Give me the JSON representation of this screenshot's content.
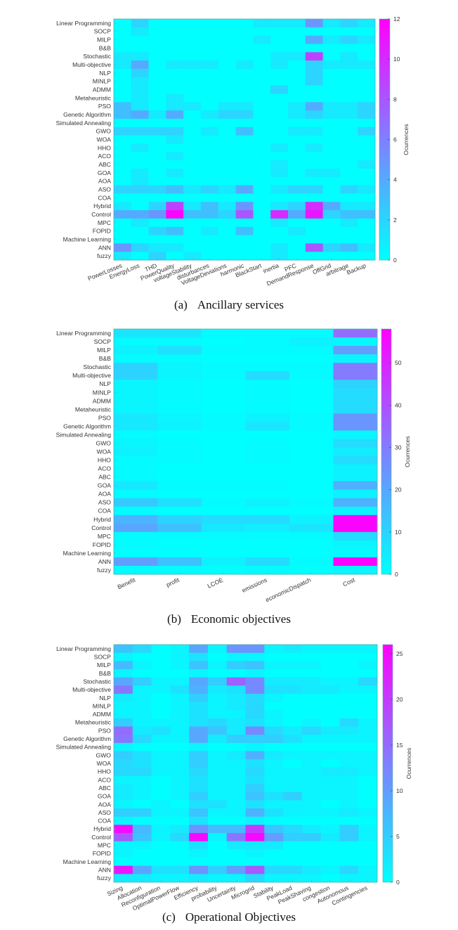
{
  "chart_data": [
    {
      "id": "a",
      "type": "heatmap",
      "caption_label": "(a)",
      "caption_text": "Ancillary services",
      "colorbar_label": "Ocurrences",
      "clim": [
        0,
        12
      ],
      "colorbar_ticks": [
        0,
        2,
        4,
        6,
        8,
        10,
        12
      ],
      "colormap": [
        "#00ffff",
        "#ff00ff"
      ],
      "rows": [
        "Linear Programming",
        "SOCP",
        "MILP",
        "B&B",
        "Stochastic",
        "Multi-objective",
        "NLP",
        "MINLP",
        "ADMM",
        "Metaheuristic",
        "PSO",
        "Genetic Algorithm",
        "Simulated Annealing",
        "GWO",
        "WOA",
        "HHO",
        "ACO",
        "ABC",
        "GOA",
        "AOA",
        "ASO",
        "COA",
        "Hybrid",
        "Control",
        "MPC",
        "FOPID",
        "Machine Learning",
        "ANN",
        "fuzzy"
      ],
      "columns": [
        "PowerLosses",
        "EnergyLoss",
        "THD",
        "PowerQuality",
        "voltageStability",
        "disturbances",
        "VoltageDeviations",
        "harmonic",
        "BlackStart",
        "inertia",
        "PFC",
        "DemandResponse",
        "OffGrid",
        "arbitrage",
        "Backup"
      ],
      "values": [
        [
          0,
          2,
          0,
          0,
          0,
          0,
          0,
          0,
          1,
          1,
          1,
          5,
          1,
          2,
          1
        ],
        [
          0,
          1,
          0,
          0,
          0,
          0,
          0,
          0,
          0,
          0,
          0,
          0,
          0,
          0,
          0
        ],
        [
          0,
          0,
          0,
          0,
          0,
          0,
          0,
          0,
          1,
          0,
          0,
          4,
          1,
          2,
          1
        ],
        [
          0,
          0,
          0,
          0,
          0,
          0,
          0,
          0,
          0,
          0,
          0,
          0,
          0,
          0,
          0
        ],
        [
          1,
          1,
          0,
          0,
          0,
          0,
          0,
          0,
          0,
          1,
          1,
          9,
          0,
          1,
          0
        ],
        [
          1,
          4,
          0,
          1,
          1,
          1,
          0,
          1,
          0,
          1,
          0,
          2,
          1,
          1,
          1
        ],
        [
          0,
          2,
          0,
          0,
          0,
          0,
          0,
          0,
          0,
          0,
          0,
          2,
          0,
          0,
          0
        ],
        [
          0,
          1,
          0,
          0,
          0,
          0,
          0,
          0,
          0,
          0,
          0,
          2,
          0,
          0,
          0
        ],
        [
          0,
          1,
          0,
          0,
          0,
          0,
          0,
          0,
          0,
          2,
          0,
          0,
          0,
          0,
          0
        ],
        [
          0,
          1,
          0,
          1,
          0,
          0,
          0,
          0,
          0,
          0,
          0,
          0,
          0,
          0,
          0
        ],
        [
          3,
          1,
          0,
          1,
          1,
          0,
          1,
          1,
          0,
          0,
          1,
          4,
          1,
          1,
          2
        ],
        [
          3,
          4,
          1,
          4,
          0,
          1,
          2,
          2,
          0,
          0,
          1,
          2,
          1,
          1,
          2
        ],
        [
          0,
          0,
          0,
          0,
          0,
          0,
          0,
          0,
          0,
          0,
          0,
          0,
          0,
          0,
          0
        ],
        [
          2,
          2,
          2,
          2,
          0,
          1,
          0,
          3,
          0,
          0,
          1,
          1,
          0,
          0,
          2
        ],
        [
          0,
          0,
          0,
          1,
          0,
          0,
          0,
          0,
          0,
          0,
          0,
          0,
          0,
          0,
          0
        ],
        [
          0,
          1,
          0,
          0,
          0,
          0,
          0,
          0,
          0,
          1,
          0,
          1,
          0,
          0,
          0
        ],
        [
          0,
          0,
          0,
          1,
          0,
          0,
          0,
          0,
          0,
          0,
          0,
          0,
          0,
          0,
          0
        ],
        [
          0,
          0,
          0,
          0,
          0,
          0,
          0,
          0,
          0,
          1,
          0,
          0,
          0,
          0,
          1
        ],
        [
          0,
          1,
          0,
          1,
          0,
          0,
          0,
          0,
          0,
          1,
          0,
          1,
          1,
          0,
          0
        ],
        [
          0,
          1,
          0,
          0,
          0,
          0,
          0,
          0,
          0,
          0,
          0,
          0,
          0,
          0,
          0
        ],
        [
          2,
          2,
          2,
          3,
          1,
          2,
          1,
          4,
          0,
          1,
          2,
          2,
          0,
          2,
          1
        ],
        [
          0,
          0,
          0,
          0,
          0,
          0,
          0,
          0,
          0,
          0,
          0,
          0,
          0,
          0,
          0
        ],
        [
          1,
          0,
          2,
          9,
          1,
          3,
          1,
          5,
          0,
          1,
          2,
          10,
          4,
          1,
          1
        ],
        [
          4,
          4,
          5,
          12,
          3,
          3,
          2,
          8,
          0,
          10,
          4,
          11,
          2,
          3,
          3
        ],
        [
          0,
          1,
          0,
          0,
          0,
          0,
          0,
          0,
          0,
          1,
          0,
          0,
          0,
          1,
          0
        ],
        [
          0,
          0,
          2,
          3,
          0,
          1,
          0,
          3,
          0,
          0,
          1,
          0,
          0,
          0,
          0
        ],
        [
          0,
          0,
          0,
          0,
          0,
          0,
          0,
          0,
          0,
          0,
          0,
          0,
          0,
          0,
          0
        ],
        [
          5,
          2,
          1,
          1,
          0,
          0,
          0,
          0,
          0,
          1,
          0,
          8,
          2,
          3,
          1
        ],
        [
          1,
          0,
          2,
          0,
          1,
          0,
          0,
          0,
          0,
          1,
          0,
          0,
          0,
          0,
          0
        ]
      ]
    },
    {
      "id": "b",
      "type": "heatmap",
      "caption_label": "(b)",
      "caption_text": "Economic objectives",
      "colorbar_label": "Ocurrences",
      "clim": [
        0,
        58
      ],
      "colorbar_ticks": [
        0,
        10,
        20,
        30,
        40,
        50
      ],
      "colormap": [
        "#00ffff",
        "#ff00ff"
      ],
      "rows": [
        "Linear Programming",
        "SOCP",
        "MILP",
        "B&B",
        "Stochastic",
        "Multi-objective",
        "NLP",
        "MINLP",
        "ADMM",
        "Metaheuristic",
        "PSO",
        "Genetic Algorithm",
        "Simulated Annealing",
        "GWO",
        "WOA",
        "HHO",
        "ACO",
        "ABC",
        "GOA",
        "AOA",
        "ASO",
        "COA",
        "Hybrid",
        "Control",
        "MPC",
        "FOPID",
        "Machine Learning",
        "ANN",
        "fuzzy"
      ],
      "columns": [
        "Benefit",
        "profit",
        "LCOE",
        "emissions",
        "economicDispatch",
        "Cost"
      ],
      "values": [
        [
          6,
          6,
          1,
          1,
          1,
          33
        ],
        [
          1,
          1,
          0,
          1,
          3,
          2
        ],
        [
          3,
          7,
          1,
          1,
          1,
          22
        ],
        [
          1,
          1,
          0,
          0,
          0,
          2
        ],
        [
          10,
          2,
          1,
          1,
          1,
          30
        ],
        [
          10,
          2,
          1,
          8,
          1,
          30
        ],
        [
          2,
          1,
          0,
          1,
          0,
          10
        ],
        [
          2,
          1,
          0,
          1,
          0,
          8
        ],
        [
          2,
          1,
          0,
          1,
          0,
          8
        ],
        [
          2,
          1,
          0,
          1,
          0,
          8
        ],
        [
          5,
          2,
          1,
          3,
          1,
          24
        ],
        [
          5,
          3,
          1,
          6,
          1,
          24
        ],
        [
          1,
          0,
          0,
          0,
          0,
          2
        ],
        [
          2,
          1,
          0,
          1,
          0,
          8
        ],
        [
          3,
          1,
          0,
          1,
          0,
          4
        ],
        [
          1,
          1,
          0,
          1,
          0,
          8
        ],
        [
          1,
          0,
          0,
          0,
          0,
          3
        ],
        [
          1,
          0,
          0,
          0,
          0,
          3
        ],
        [
          5,
          1,
          1,
          1,
          0,
          18
        ],
        [
          1,
          0,
          0,
          0,
          0,
          3
        ],
        [
          12,
          7,
          1,
          3,
          1,
          18
        ],
        [
          1,
          0,
          0,
          0,
          0,
          3
        ],
        [
          17,
          10,
          8,
          8,
          3,
          57
        ],
        [
          20,
          14,
          5,
          4,
          6,
          57
        ],
        [
          1,
          1,
          1,
          1,
          1,
          8
        ],
        [
          1,
          0,
          0,
          0,
          0,
          2
        ],
        [
          0,
          0,
          0,
          0,
          0,
          1
        ],
        [
          22,
          14,
          3,
          8,
          1,
          57
        ],
        [
          1,
          1,
          0,
          1,
          0,
          2
        ]
      ]
    },
    {
      "id": "c",
      "type": "heatmap",
      "caption_label": "(c)",
      "caption_text": "Operational Objectives",
      "colorbar_label": "Ocurrences",
      "clim": [
        0,
        26
      ],
      "colorbar_ticks": [
        0,
        5,
        10,
        15,
        20,
        25
      ],
      "colormap": [
        "#00ffff",
        "#ff00ff"
      ],
      "rows": [
        "Linear Programming",
        "SOCP",
        "MILP",
        "B&B",
        "Stochastic",
        "Multi-objective",
        "NLP",
        "MINLP",
        "ADMM",
        "Metaheuristic",
        "PSO",
        "Genetic Algorithm",
        "Simulated Annealing",
        "GWO",
        "WOA",
        "HHO",
        "ACO",
        "ABC",
        "GOA",
        "AOA",
        "ASO",
        "COA",
        "Hybrid",
        "Control",
        "MPC",
        "FOPID",
        "Machine Learning",
        "ANN",
        "fuzzy"
      ],
      "columns": [
        "Sizing",
        "Allocation",
        "Reconfiguration",
        "OptimalPowerFlow",
        "Efficiency",
        "probability",
        "Uncertainty",
        "Microgrid",
        "Stability",
        "PeakLoad",
        "PeakShaving",
        "congestion",
        "Autonomous",
        "Contingencies"
      ],
      "values": [
        [
          6,
          4,
          0,
          1,
          9,
          1,
          11,
          11,
          1,
          2,
          1,
          1,
          1,
          1
        ],
        [
          1,
          0,
          0,
          1,
          3,
          0,
          1,
          1,
          0,
          0,
          0,
          0,
          0,
          0
        ],
        [
          7,
          1,
          0,
          1,
          6,
          1,
          5,
          6,
          1,
          1,
          1,
          0,
          0,
          1
        ],
        [
          1,
          0,
          0,
          0,
          1,
          0,
          0,
          1,
          0,
          0,
          0,
          0,
          0,
          0
        ],
        [
          9,
          5,
          1,
          1,
          9,
          5,
          16,
          12,
          2,
          2,
          2,
          1,
          1,
          4
        ],
        [
          14,
          1,
          1,
          3,
          8,
          2,
          3,
          12,
          3,
          3,
          2,
          2,
          1,
          1
        ],
        [
          2,
          1,
          0,
          1,
          5,
          1,
          2,
          4,
          1,
          0,
          0,
          0,
          0,
          0
        ],
        [
          1,
          1,
          0,
          1,
          3,
          1,
          2,
          4,
          0,
          0,
          0,
          0,
          0,
          0
        ],
        [
          1,
          1,
          0,
          1,
          3,
          1,
          1,
          4,
          1,
          0,
          0,
          0,
          0,
          0
        ],
        [
          5,
          1,
          1,
          1,
          3,
          4,
          2,
          3,
          1,
          0,
          1,
          0,
          4,
          1
        ],
        [
          15,
          2,
          3,
          1,
          9,
          6,
          2,
          12,
          4,
          2,
          4,
          2,
          2,
          1
        ],
        [
          14,
          4,
          1,
          1,
          9,
          2,
          5,
          5,
          5,
          3,
          1,
          1,
          1,
          1
        ],
        [
          1,
          0,
          0,
          0,
          1,
          0,
          0,
          1,
          0,
          0,
          0,
          0,
          0,
          0
        ],
        [
          5,
          3,
          1,
          1,
          5,
          1,
          2,
          8,
          2,
          1,
          1,
          1,
          1,
          1
        ],
        [
          4,
          3,
          1,
          1,
          5,
          1,
          1,
          3,
          1,
          0,
          1,
          0,
          1,
          1
        ],
        [
          4,
          4,
          1,
          1,
          4,
          1,
          1,
          4,
          1,
          1,
          1,
          2,
          2,
          1
        ],
        [
          1,
          1,
          0,
          1,
          3,
          1,
          1,
          3,
          1,
          1,
          1,
          1,
          1,
          0
        ],
        [
          2,
          1,
          0,
          1,
          3,
          1,
          1,
          5,
          1,
          1,
          1,
          1,
          1,
          0
        ],
        [
          2,
          1,
          0,
          1,
          5,
          1,
          1,
          6,
          3,
          5,
          1,
          1,
          1,
          0
        ],
        [
          1,
          0,
          1,
          0,
          3,
          3,
          1,
          3,
          1,
          1,
          1,
          0,
          1,
          0
        ],
        [
          5,
          5,
          1,
          1,
          6,
          1,
          1,
          8,
          3,
          1,
          1,
          1,
          2,
          1
        ],
        [
          1,
          0,
          0,
          0,
          3,
          0,
          0,
          1,
          0,
          0,
          0,
          0,
          0,
          0
        ],
        [
          25,
          7,
          1,
          2,
          11,
          7,
          7,
          20,
          6,
          4,
          2,
          1,
          5,
          1
        ],
        [
          17,
          6,
          1,
          4,
          25,
          1,
          14,
          25,
          10,
          5,
          5,
          2,
          5,
          1
        ],
        [
          1,
          1,
          0,
          0,
          3,
          0,
          2,
          2,
          2,
          0,
          0,
          0,
          0,
          0
        ],
        [
          1,
          0,
          0,
          0,
          1,
          0,
          0,
          1,
          0,
          0,
          0,
          0,
          0,
          0
        ],
        [
          0,
          0,
          0,
          0,
          0,
          0,
          0,
          0,
          0,
          0,
          0,
          0,
          0,
          0
        ],
        [
          24,
          9,
          3,
          3,
          11,
          5,
          10,
          17,
          4,
          4,
          2,
          1,
          4,
          1
        ],
        [
          2,
          2,
          1,
          1,
          2,
          1,
          1,
          4,
          1,
          1,
          1,
          0,
          1,
          1
        ]
      ]
    }
  ]
}
